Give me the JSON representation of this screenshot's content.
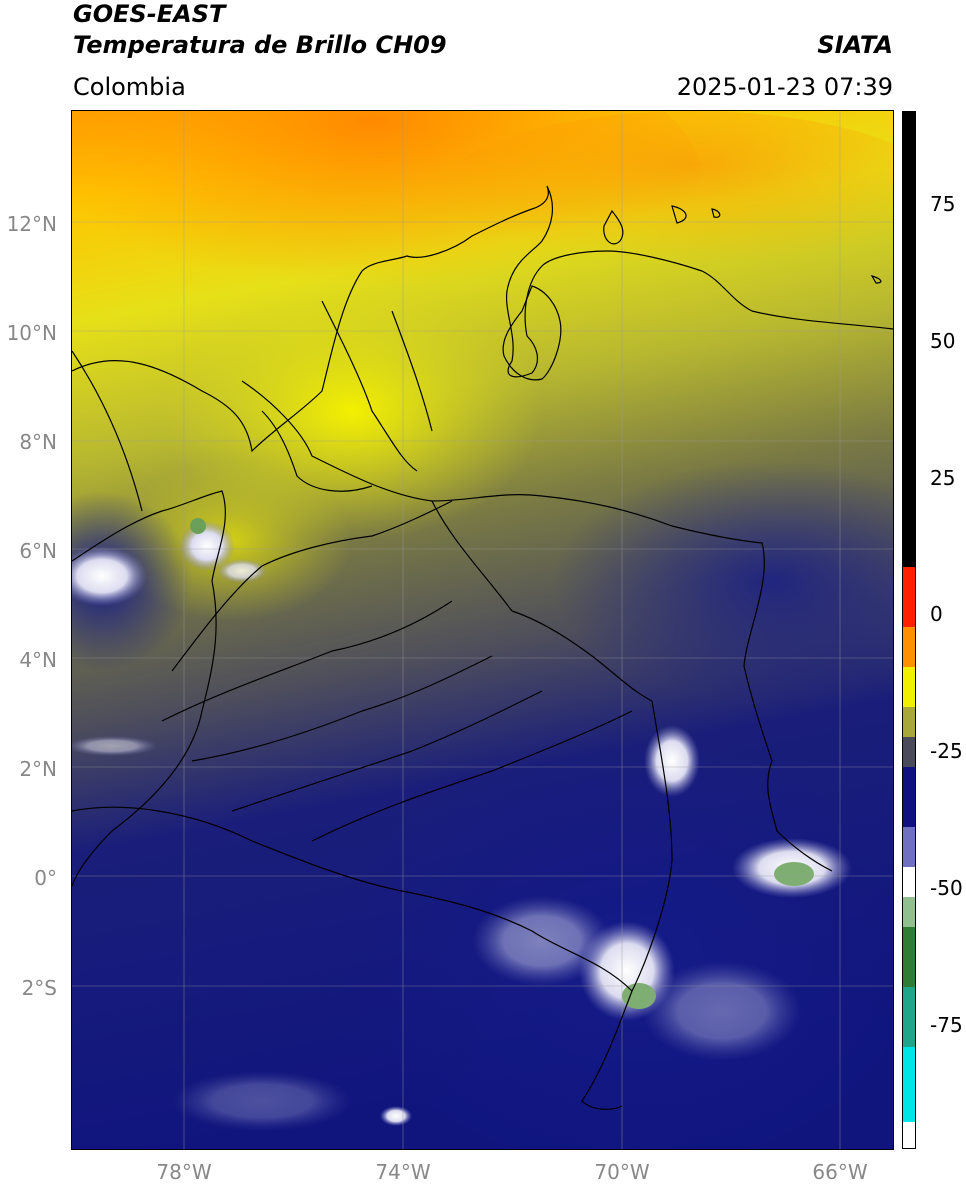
{
  "header": {
    "satellite": "GOES-EAST",
    "product": "Temperatura de Brillo CH09",
    "brand": "SIATA",
    "region": "Colombia",
    "timestamp": "2025-01-23 07:39"
  },
  "axes": {
    "lat_labels": [
      "12°N",
      "10°N",
      "8°N",
      "6°N",
      "4°N",
      "2°N",
      "0°",
      "2°S"
    ],
    "lon_labels": [
      "78°W",
      "74°W",
      "70°W",
      "66°W"
    ]
  },
  "colorbar": {
    "ticks": [
      "75",
      "50",
      "25",
      "0",
      "-25",
      "-50",
      "-75"
    ],
    "stops": [
      "#00e6e6",
      "#1fa58a",
      "#2e7d32",
      "#8bc08b",
      "#ffffff",
      "#b6b6e8",
      "#5050b0",
      "#101080",
      "#3c3c64",
      "#6b6b3c",
      "#b5b52c",
      "#f0f000",
      "#ffc000",
      "#ff8000",
      "#ff2000",
      "#000000"
    ]
  },
  "colors": {
    "cold_clouds": "#ffffff",
    "deep_convection": "#6aa05a",
    "clear_mid": "#121a84",
    "moist_layer": "#5a5a48",
    "dry_layer": "#e0e010",
    "very_dry": "#ff9a00",
    "coastline": "#000000"
  }
}
